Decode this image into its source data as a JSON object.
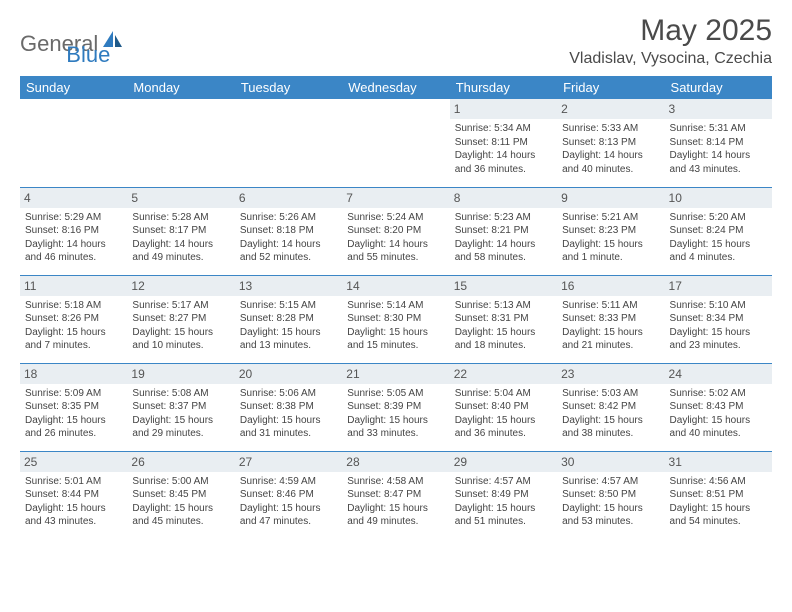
{
  "logo": {
    "text1": "General",
    "text2": "Blue"
  },
  "title": "May 2025",
  "location": "Vladislav, Vysocina, Czechia",
  "colors": {
    "header_bg": "#3b86c6",
    "header_text": "#ffffff",
    "daynum_bg": "#e9eef2",
    "row_border": "#3b86c6",
    "body_text": "#444444",
    "logo_gray": "#6a6a6a",
    "logo_blue": "#2f7bbf"
  },
  "weekdays": [
    "Sunday",
    "Monday",
    "Tuesday",
    "Wednesday",
    "Thursday",
    "Friday",
    "Saturday"
  ],
  "weeks": [
    [
      {
        "day": "",
        "sunrise": "",
        "sunset": "",
        "daylight1": "",
        "daylight2": "",
        "empty": true
      },
      {
        "day": "",
        "sunrise": "",
        "sunset": "",
        "daylight1": "",
        "daylight2": "",
        "empty": true
      },
      {
        "day": "",
        "sunrise": "",
        "sunset": "",
        "daylight1": "",
        "daylight2": "",
        "empty": true
      },
      {
        "day": "",
        "sunrise": "",
        "sunset": "",
        "daylight1": "",
        "daylight2": "",
        "empty": true
      },
      {
        "day": "1",
        "sunrise": "Sunrise: 5:34 AM",
        "sunset": "Sunset: 8:11 PM",
        "daylight1": "Daylight: 14 hours",
        "daylight2": "and 36 minutes."
      },
      {
        "day": "2",
        "sunrise": "Sunrise: 5:33 AM",
        "sunset": "Sunset: 8:13 PM",
        "daylight1": "Daylight: 14 hours",
        "daylight2": "and 40 minutes."
      },
      {
        "day": "3",
        "sunrise": "Sunrise: 5:31 AM",
        "sunset": "Sunset: 8:14 PM",
        "daylight1": "Daylight: 14 hours",
        "daylight2": "and 43 minutes."
      }
    ],
    [
      {
        "day": "4",
        "sunrise": "Sunrise: 5:29 AM",
        "sunset": "Sunset: 8:16 PM",
        "daylight1": "Daylight: 14 hours",
        "daylight2": "and 46 minutes."
      },
      {
        "day": "5",
        "sunrise": "Sunrise: 5:28 AM",
        "sunset": "Sunset: 8:17 PM",
        "daylight1": "Daylight: 14 hours",
        "daylight2": "and 49 minutes."
      },
      {
        "day": "6",
        "sunrise": "Sunrise: 5:26 AM",
        "sunset": "Sunset: 8:18 PM",
        "daylight1": "Daylight: 14 hours",
        "daylight2": "and 52 minutes."
      },
      {
        "day": "7",
        "sunrise": "Sunrise: 5:24 AM",
        "sunset": "Sunset: 8:20 PM",
        "daylight1": "Daylight: 14 hours",
        "daylight2": "and 55 minutes."
      },
      {
        "day": "8",
        "sunrise": "Sunrise: 5:23 AM",
        "sunset": "Sunset: 8:21 PM",
        "daylight1": "Daylight: 14 hours",
        "daylight2": "and 58 minutes."
      },
      {
        "day": "9",
        "sunrise": "Sunrise: 5:21 AM",
        "sunset": "Sunset: 8:23 PM",
        "daylight1": "Daylight: 15 hours",
        "daylight2": "and 1 minute."
      },
      {
        "day": "10",
        "sunrise": "Sunrise: 5:20 AM",
        "sunset": "Sunset: 8:24 PM",
        "daylight1": "Daylight: 15 hours",
        "daylight2": "and 4 minutes."
      }
    ],
    [
      {
        "day": "11",
        "sunrise": "Sunrise: 5:18 AM",
        "sunset": "Sunset: 8:26 PM",
        "daylight1": "Daylight: 15 hours",
        "daylight2": "and 7 minutes."
      },
      {
        "day": "12",
        "sunrise": "Sunrise: 5:17 AM",
        "sunset": "Sunset: 8:27 PM",
        "daylight1": "Daylight: 15 hours",
        "daylight2": "and 10 minutes."
      },
      {
        "day": "13",
        "sunrise": "Sunrise: 5:15 AM",
        "sunset": "Sunset: 8:28 PM",
        "daylight1": "Daylight: 15 hours",
        "daylight2": "and 13 minutes."
      },
      {
        "day": "14",
        "sunrise": "Sunrise: 5:14 AM",
        "sunset": "Sunset: 8:30 PM",
        "daylight1": "Daylight: 15 hours",
        "daylight2": "and 15 minutes."
      },
      {
        "day": "15",
        "sunrise": "Sunrise: 5:13 AM",
        "sunset": "Sunset: 8:31 PM",
        "daylight1": "Daylight: 15 hours",
        "daylight2": "and 18 minutes."
      },
      {
        "day": "16",
        "sunrise": "Sunrise: 5:11 AM",
        "sunset": "Sunset: 8:33 PM",
        "daylight1": "Daylight: 15 hours",
        "daylight2": "and 21 minutes."
      },
      {
        "day": "17",
        "sunrise": "Sunrise: 5:10 AM",
        "sunset": "Sunset: 8:34 PM",
        "daylight1": "Daylight: 15 hours",
        "daylight2": "and 23 minutes."
      }
    ],
    [
      {
        "day": "18",
        "sunrise": "Sunrise: 5:09 AM",
        "sunset": "Sunset: 8:35 PM",
        "daylight1": "Daylight: 15 hours",
        "daylight2": "and 26 minutes."
      },
      {
        "day": "19",
        "sunrise": "Sunrise: 5:08 AM",
        "sunset": "Sunset: 8:37 PM",
        "daylight1": "Daylight: 15 hours",
        "daylight2": "and 29 minutes."
      },
      {
        "day": "20",
        "sunrise": "Sunrise: 5:06 AM",
        "sunset": "Sunset: 8:38 PM",
        "daylight1": "Daylight: 15 hours",
        "daylight2": "and 31 minutes."
      },
      {
        "day": "21",
        "sunrise": "Sunrise: 5:05 AM",
        "sunset": "Sunset: 8:39 PM",
        "daylight1": "Daylight: 15 hours",
        "daylight2": "and 33 minutes."
      },
      {
        "day": "22",
        "sunrise": "Sunrise: 5:04 AM",
        "sunset": "Sunset: 8:40 PM",
        "daylight1": "Daylight: 15 hours",
        "daylight2": "and 36 minutes."
      },
      {
        "day": "23",
        "sunrise": "Sunrise: 5:03 AM",
        "sunset": "Sunset: 8:42 PM",
        "daylight1": "Daylight: 15 hours",
        "daylight2": "and 38 minutes."
      },
      {
        "day": "24",
        "sunrise": "Sunrise: 5:02 AM",
        "sunset": "Sunset: 8:43 PM",
        "daylight1": "Daylight: 15 hours",
        "daylight2": "and 40 minutes."
      }
    ],
    [
      {
        "day": "25",
        "sunrise": "Sunrise: 5:01 AM",
        "sunset": "Sunset: 8:44 PM",
        "daylight1": "Daylight: 15 hours",
        "daylight2": "and 43 minutes."
      },
      {
        "day": "26",
        "sunrise": "Sunrise: 5:00 AM",
        "sunset": "Sunset: 8:45 PM",
        "daylight1": "Daylight: 15 hours",
        "daylight2": "and 45 minutes."
      },
      {
        "day": "27",
        "sunrise": "Sunrise: 4:59 AM",
        "sunset": "Sunset: 8:46 PM",
        "daylight1": "Daylight: 15 hours",
        "daylight2": "and 47 minutes."
      },
      {
        "day": "28",
        "sunrise": "Sunrise: 4:58 AM",
        "sunset": "Sunset: 8:47 PM",
        "daylight1": "Daylight: 15 hours",
        "daylight2": "and 49 minutes."
      },
      {
        "day": "29",
        "sunrise": "Sunrise: 4:57 AM",
        "sunset": "Sunset: 8:49 PM",
        "daylight1": "Daylight: 15 hours",
        "daylight2": "and 51 minutes."
      },
      {
        "day": "30",
        "sunrise": "Sunrise: 4:57 AM",
        "sunset": "Sunset: 8:50 PM",
        "daylight1": "Daylight: 15 hours",
        "daylight2": "and 53 minutes."
      },
      {
        "day": "31",
        "sunrise": "Sunrise: 4:56 AM",
        "sunset": "Sunset: 8:51 PM",
        "daylight1": "Daylight: 15 hours",
        "daylight2": "and 54 minutes."
      }
    ]
  ]
}
